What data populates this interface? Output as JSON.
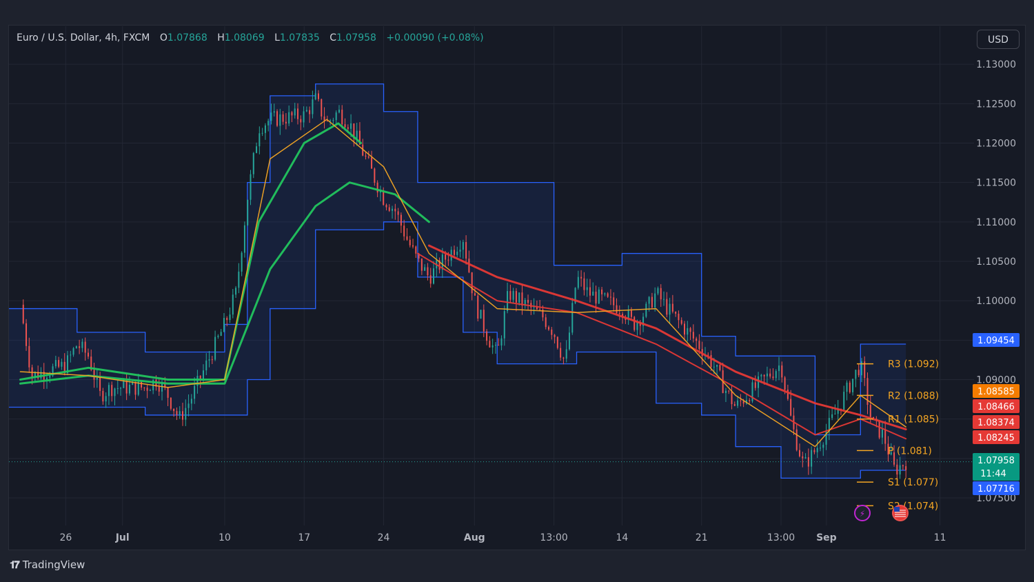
{
  "legend": {
    "symbol": "Euro / U.S. Dollar, 4h, FXCM",
    "open_label": "O",
    "open": "1.07868",
    "high_label": "H",
    "high": "1.08069",
    "low_label": "L",
    "low": "1.07835",
    "close_label": "C",
    "close": "1.07958",
    "change": "+0.00090 (+0.08%)"
  },
  "currency_button": "USD",
  "brand": "TradingView",
  "colors": {
    "background": "#161a25",
    "up": "#26a69a",
    "down": "#ef5350",
    "channel": "#2962ff",
    "ema_green": "#22c55e",
    "ema_red": "#e53935",
    "ema_orange": "#f5a623",
    "pivot": "#f5a623"
  },
  "chart_data": {
    "type": "candlestick",
    "x_tick_labels": [
      "26",
      "Jul",
      "10",
      "17",
      "24",
      "Aug",
      "13:00",
      "14",
      "21",
      "13:00",
      "Sep",
      "11"
    ],
    "y_tick_labels": [
      "1.13000",
      "1.12500",
      "1.12000",
      "1.11500",
      "1.11000",
      "1.10500",
      "1.10000",
      "1.09500",
      "1.09000",
      "1.07500"
    ],
    "ylim": [
      1.0715,
      1.1315
    ],
    "grid": true,
    "price_path": [
      {
        "date": "2023-06-22",
        "price": 1.0995
      },
      {
        "date": "2023-06-23",
        "price": 1.0905
      },
      {
        "date": "2023-06-26",
        "price": 1.0918
      },
      {
        "date": "2023-06-27",
        "price": 1.0945
      },
      {
        "date": "2023-06-28",
        "price": 1.093
      },
      {
        "date": "2023-06-29",
        "price": 1.088
      },
      {
        "date": "2023-06-30",
        "price": 1.089
      },
      {
        "date": "2023-07-03",
        "price": 1.089
      },
      {
        "date": "2023-07-04",
        "price": 1.09
      },
      {
        "date": "2023-07-05",
        "price": 1.088
      },
      {
        "date": "2023-07-06",
        "price": 1.085
      },
      {
        "date": "2023-07-07",
        "price": 1.0875
      },
      {
        "date": "2023-07-10",
        "price": 1.097
      },
      {
        "date": "2023-07-11",
        "price": 1.101
      },
      {
        "date": "2023-07-12",
        "price": 1.113
      },
      {
        "date": "2023-07-13",
        "price": 1.122
      },
      {
        "date": "2023-07-14",
        "price": 1.123
      },
      {
        "date": "2023-07-17",
        "price": 1.1235
      },
      {
        "date": "2023-07-18",
        "price": 1.1255
      },
      {
        "date": "2023-07-19",
        "price": 1.1225
      },
      {
        "date": "2023-07-20",
        "price": 1.124
      },
      {
        "date": "2023-07-21",
        "price": 1.1225
      },
      {
        "date": "2023-07-24",
        "price": 1.113
      },
      {
        "date": "2023-07-25",
        "price": 1.1115
      },
      {
        "date": "2023-07-26",
        "price": 1.108
      },
      {
        "date": "2023-07-27",
        "price": 1.105
      },
      {
        "date": "2023-07-28",
        "price": 1.103
      },
      {
        "date": "2023-07-31",
        "price": 1.108
      },
      {
        "date": "2023-08-01",
        "price": 1.1
      },
      {
        "date": "2023-08-02",
        "price": 1.096
      },
      {
        "date": "2023-08-03",
        "price": 1.093
      },
      {
        "date": "2023-08-04",
        "price": 1.101
      },
      {
        "date": "2023-08-07",
        "price": 1.098
      },
      {
        "date": "2023-08-08",
        "price": 1.096
      },
      {
        "date": "2023-08-09",
        "price": 1.092
      },
      {
        "date": "2023-08-10",
        "price": 1.103
      },
      {
        "date": "2023-08-11",
        "price": 1.101
      },
      {
        "date": "2023-08-14",
        "price": 1.099
      },
      {
        "date": "2023-08-15",
        "price": 1.097
      },
      {
        "date": "2023-08-16",
        "price": 1.0985
      },
      {
        "date": "2023-08-17",
        "price": 1.101
      },
      {
        "date": "2023-08-18",
        "price": 1.099
      },
      {
        "date": "2023-08-21",
        "price": 1.094
      },
      {
        "date": "2023-08-22",
        "price": 1.092
      },
      {
        "date": "2023-08-23",
        "price": 1.089
      },
      {
        "date": "2023-08-24",
        "price": 1.0865
      },
      {
        "date": "2023-08-25",
        "price": 1.088
      },
      {
        "date": "2023-08-28",
        "price": 1.092
      },
      {
        "date": "2023-08-29",
        "price": 1.084
      },
      {
        "date": "2023-08-30",
        "price": 1.079
      },
      {
        "date": "2023-08-31",
        "price": 1.081
      },
      {
        "date": "2023-09-01",
        "price": 1.0835
      },
      {
        "date": "2023-09-04",
        "price": 1.092
      },
      {
        "date": "2023-09-05",
        "price": 1.0845
      },
      {
        "date": "2023-09-06",
        "price": 1.083
      },
      {
        "date": "2023-09-07",
        "price": 1.0785
      },
      {
        "date": "2023-09-08",
        "price": 1.0796
      }
    ],
    "price_channel": [
      {
        "from": "2023-06-21",
        "to": "2023-06-27",
        "upper": 1.099,
        "lower": 1.0865
      },
      {
        "from": "2023-06-27",
        "to": "2023-07-03",
        "upper": 1.096,
        "lower": 1.0865
      },
      {
        "from": "2023-07-03",
        "to": "2023-07-10",
        "upper": 1.0935,
        "lower": 1.0855
      },
      {
        "from": "2023-07-10",
        "to": "2023-07-12",
        "upper": 1.097,
        "lower": 1.0855
      },
      {
        "from": "2023-07-12",
        "to": "2023-07-14",
        "upper": 1.115,
        "lower": 1.09
      },
      {
        "from": "2023-07-14",
        "to": "2023-07-18",
        "upper": 1.126,
        "lower": 1.099
      },
      {
        "from": "2023-07-18",
        "to": "2023-07-24",
        "upper": 1.1275,
        "lower": 1.109
      },
      {
        "from": "2023-07-24",
        "to": "2023-07-27",
        "upper": 1.124,
        "lower": 1.11
      },
      {
        "from": "2023-07-27",
        "to": "2023-07-31",
        "upper": 1.115,
        "lower": 1.103
      },
      {
        "from": "2023-07-31",
        "to": "2023-08-03",
        "upper": 1.115,
        "lower": 1.096
      },
      {
        "from": "2023-08-03",
        "to": "2023-08-08",
        "upper": 1.115,
        "lower": 1.092
      },
      {
        "from": "2023-08-08",
        "to": "2023-08-10",
        "upper": 1.1045,
        "lower": 1.092
      },
      {
        "from": "2023-08-10",
        "to": "2023-08-14",
        "upper": 1.1045,
        "lower": 1.0935
      },
      {
        "from": "2023-08-14",
        "to": "2023-08-17",
        "upper": 1.106,
        "lower": 1.0935
      },
      {
        "from": "2023-08-17",
        "to": "2023-08-21",
        "upper": 1.106,
        "lower": 1.087
      },
      {
        "from": "2023-08-21",
        "to": "2023-08-24",
        "upper": 1.0955,
        "lower": 1.0855
      },
      {
        "from": "2023-08-24",
        "to": "2023-08-28",
        "upper": 1.093,
        "lower": 1.0815
      },
      {
        "from": "2023-08-28",
        "to": "2023-08-31",
        "upper": 1.093,
        "lower": 1.0775
      },
      {
        "from": "2023-08-31",
        "to": "2023-09-04",
        "upper": 1.083,
        "lower": 1.0775
      },
      {
        "from": "2023-09-04",
        "to": "2023-09-08",
        "upper": 1.0945,
        "lower": 1.0785
      }
    ],
    "ema_series": [
      {
        "color": "ema_green",
        "width": 3,
        "points": [
          {
            "date": "2023-06-22",
            "price": 1.0895
          },
          {
            "date": "2023-06-28",
            "price": 1.0905
          },
          {
            "date": "2023-07-05",
            "price": 1.0895
          },
          {
            "date": "2023-07-10",
            "price": 1.0895
          },
          {
            "date": "2023-07-14",
            "price": 1.104
          },
          {
            "date": "2023-07-18",
            "price": 1.112
          },
          {
            "date": "2023-07-21",
            "price": 1.115
          },
          {
            "date": "2023-07-25",
            "price": 1.1135
          },
          {
            "date": "2023-07-28",
            "price": 1.11
          }
        ]
      },
      {
        "color": "ema_green",
        "width": 3,
        "points": [
          {
            "date": "2023-06-22",
            "price": 1.09
          },
          {
            "date": "2023-06-28",
            "price": 1.0915
          },
          {
            "date": "2023-07-05",
            "price": 1.09
          },
          {
            "date": "2023-07-10",
            "price": 1.09
          },
          {
            "date": "2023-07-13",
            "price": 1.11
          },
          {
            "date": "2023-07-17",
            "price": 1.12
          },
          {
            "date": "2023-07-20",
            "price": 1.1225
          },
          {
            "date": "2023-07-22",
            "price": 1.12
          }
        ]
      },
      {
        "color": "ema_red",
        "width": 3,
        "points": [
          {
            "date": "2023-07-28",
            "price": 1.107
          },
          {
            "date": "2023-08-03",
            "price": 1.103
          },
          {
            "date": "2023-08-10",
            "price": 1.1
          },
          {
            "date": "2023-08-17",
            "price": 1.0965
          },
          {
            "date": "2023-08-24",
            "price": 1.091
          },
          {
            "date": "2023-08-31",
            "price": 1.087
          },
          {
            "date": "2023-09-04",
            "price": 1.0855
          },
          {
            "date": "2023-09-08",
            "price": 1.0837
          }
        ]
      },
      {
        "color": "ema_red",
        "width": 2,
        "points": [
          {
            "date": "2023-07-27",
            "price": 1.106
          },
          {
            "date": "2023-08-03",
            "price": 1.1
          },
          {
            "date": "2023-08-10",
            "price": 1.0985
          },
          {
            "date": "2023-08-17",
            "price": 1.0945
          },
          {
            "date": "2023-08-24",
            "price": 1.089
          },
          {
            "date": "2023-08-31",
            "price": 1.083
          },
          {
            "date": "2023-09-04",
            "price": 1.085
          },
          {
            "date": "2023-09-08",
            "price": 1.0825
          }
        ]
      },
      {
        "color": "ema_orange",
        "width": 1.5,
        "points": [
          {
            "date": "2023-06-22",
            "price": 1.091
          },
          {
            "date": "2023-06-28",
            "price": 1.0905
          },
          {
            "date": "2023-07-05",
            "price": 1.089
          },
          {
            "date": "2023-07-10",
            "price": 1.09
          },
          {
            "date": "2023-07-14",
            "price": 1.118
          },
          {
            "date": "2023-07-19",
            "price": 1.123
          },
          {
            "date": "2023-07-24",
            "price": 1.117
          },
          {
            "date": "2023-07-28",
            "price": 1.106
          },
          {
            "date": "2023-08-03",
            "price": 1.099
          },
          {
            "date": "2023-08-10",
            "price": 1.0985
          },
          {
            "date": "2023-08-17",
            "price": 1.099
          },
          {
            "date": "2023-08-24",
            "price": 1.088
          },
          {
            "date": "2023-08-31",
            "price": 1.0815
          },
          {
            "date": "2023-09-04",
            "price": 1.088
          },
          {
            "date": "2023-09-08",
            "price": 1.084
          }
        ]
      }
    ],
    "pivot_levels": [
      {
        "label": "R3 (1.092)",
        "value": 1.092
      },
      {
        "label": "R2 (1.088)",
        "value": 1.088
      },
      {
        "label": "R1 (1.085)",
        "value": 1.085
      },
      {
        "label": "P (1.081)",
        "value": 1.081
      },
      {
        "label": "S1 (1.077)",
        "value": 1.077
      },
      {
        "label": "S2 (1.074)",
        "value": 1.074
      }
    ],
    "price_badges": [
      {
        "value": 1.09454,
        "text": "1.09454",
        "color": "#2962ff"
      },
      {
        "value": 1.08585,
        "text": "1.08585",
        "color": "#f57c00"
      },
      {
        "value": 1.08466,
        "text": "1.08466",
        "color": "#e53935"
      },
      {
        "value": 1.08374,
        "text": "1.08374",
        "color": "#e53935"
      },
      {
        "value": 1.08245,
        "text": "1.08245",
        "color": "#e53935"
      },
      {
        "value": 1.07958,
        "text": "1.07958",
        "color": "#089981"
      },
      {
        "value": 1.07716,
        "text": "1.07716",
        "color": "#2962ff"
      }
    ],
    "countdown": "11:44",
    "last_price": 1.07958
  }
}
